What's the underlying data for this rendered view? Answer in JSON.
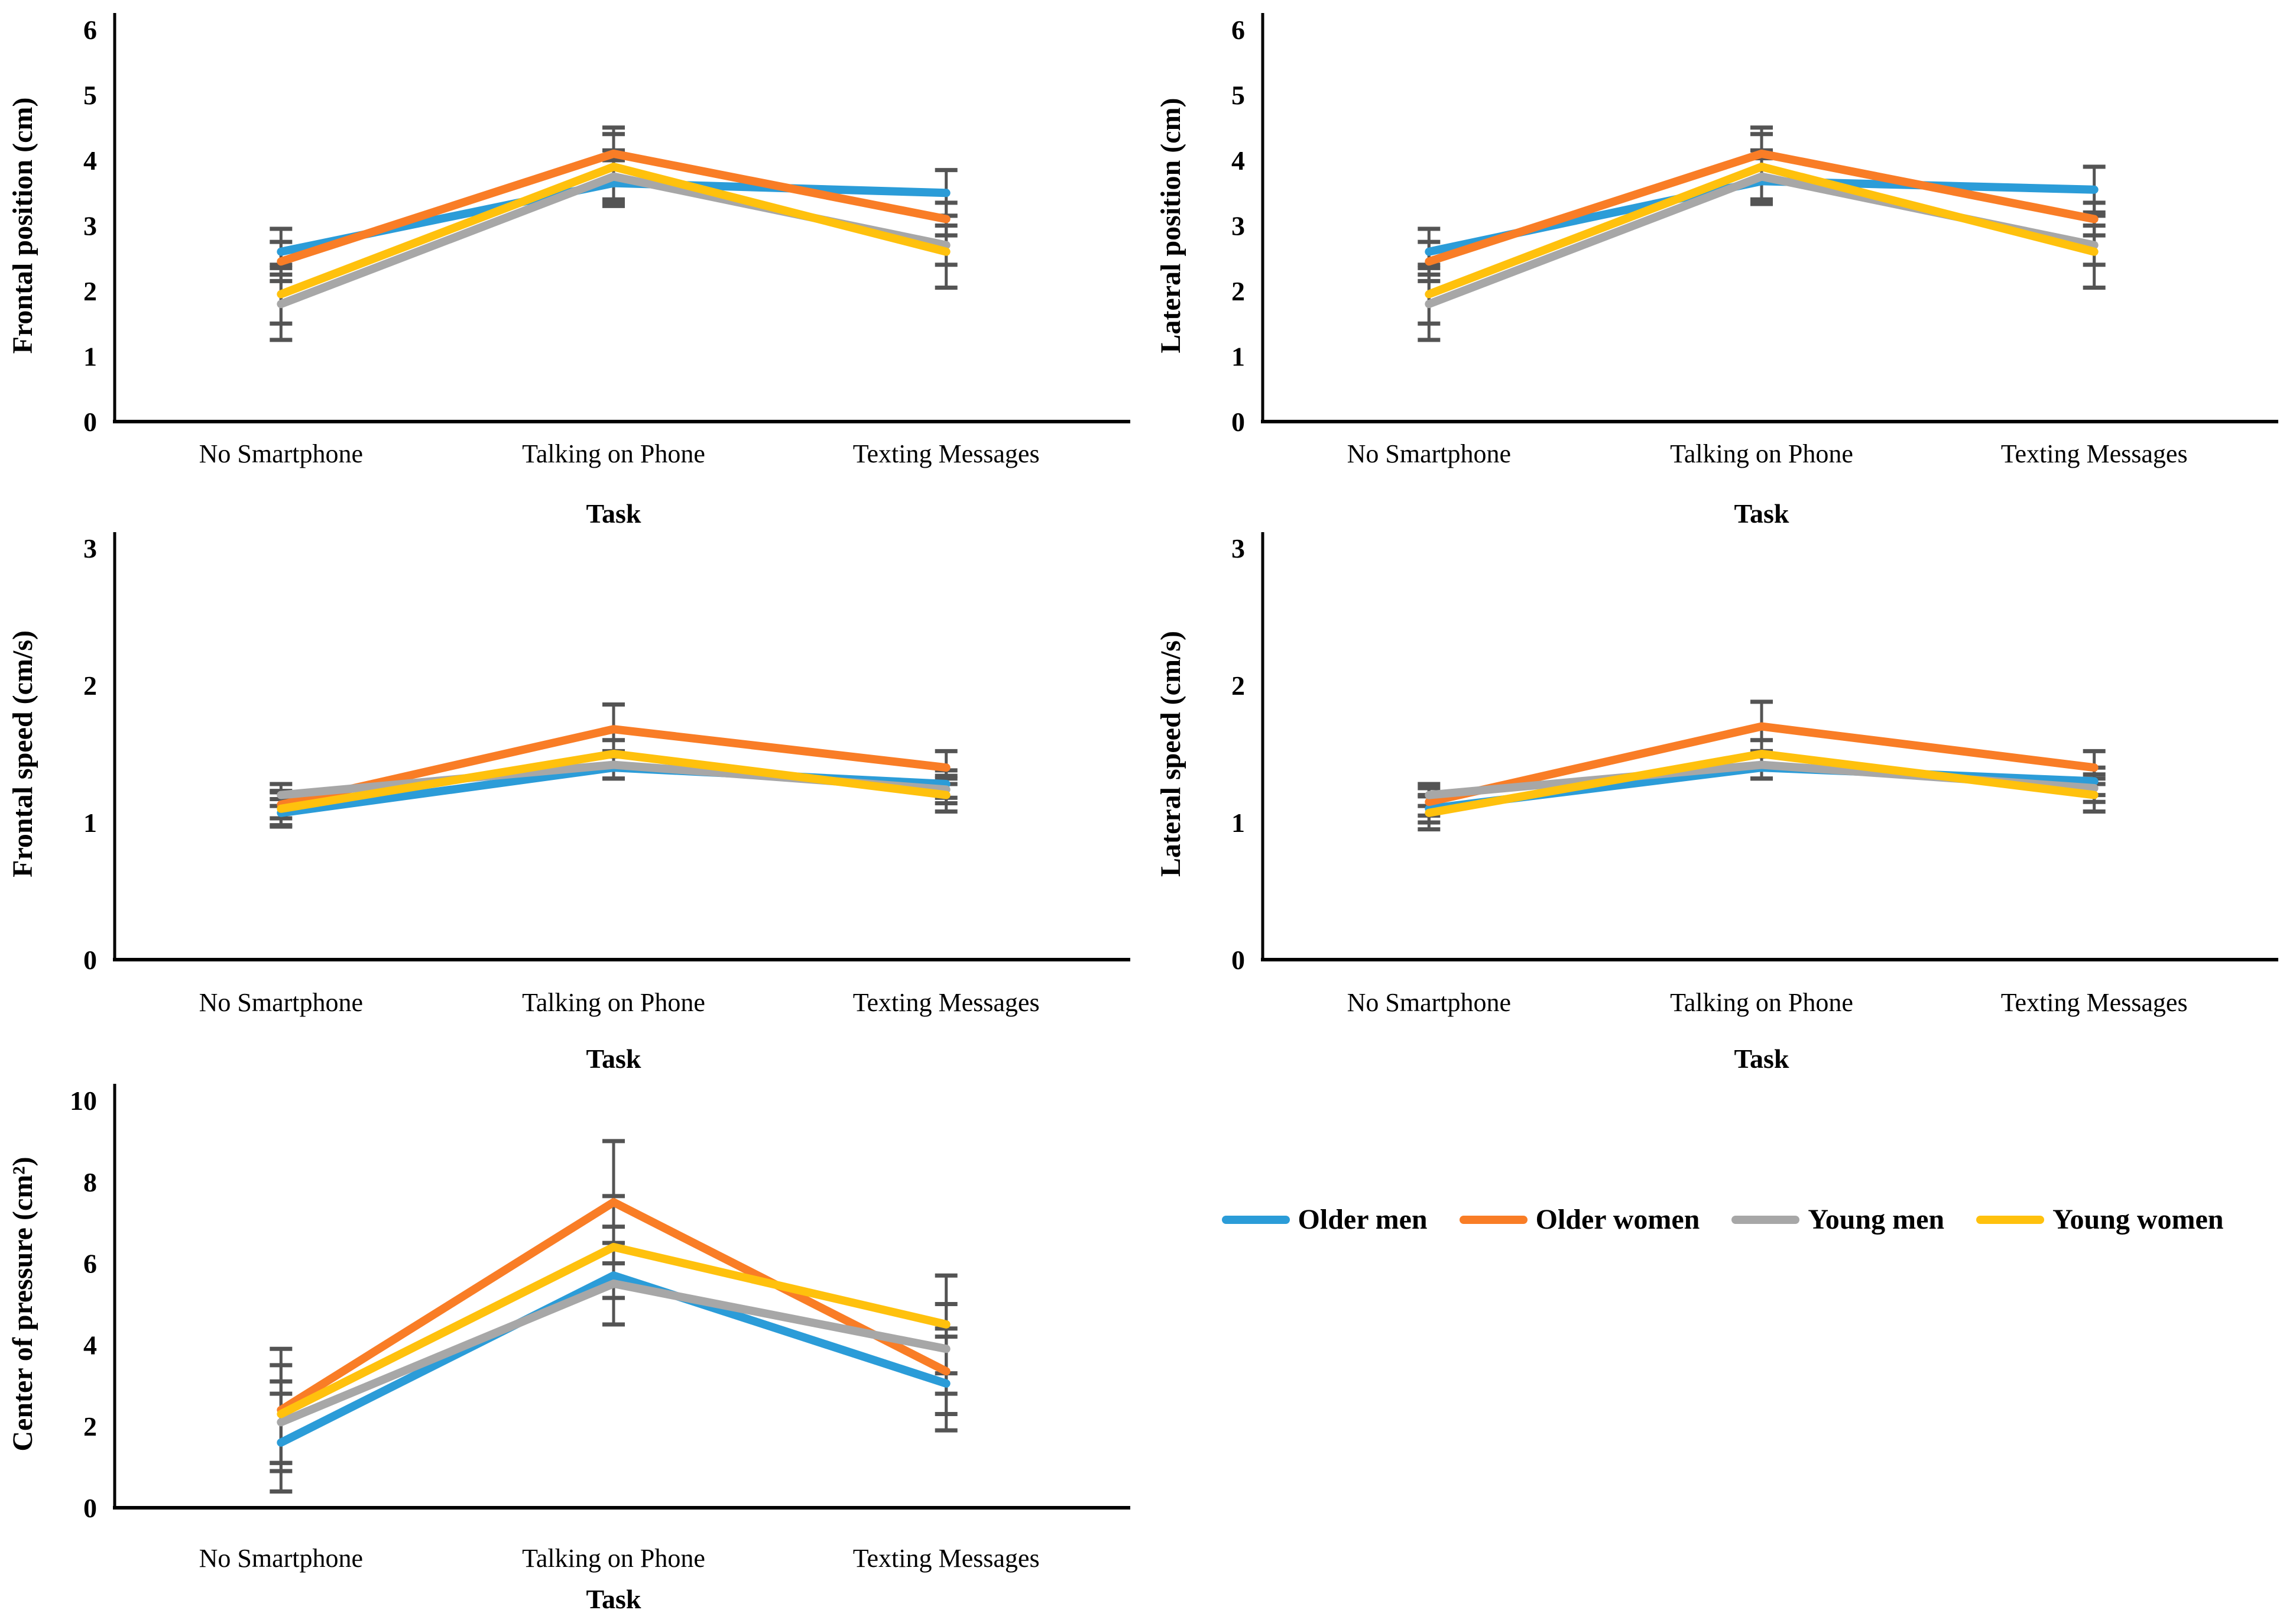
{
  "page": {
    "background": "#ffffff"
  },
  "chart_data": {
    "type": "line",
    "figure": "2x3 grid of mean±error line charts, legend in bottom-right cell",
    "categories": [
      "No Smartphone",
      "Talking on Phone",
      "Texting Messages"
    ],
    "xlabel": "Task",
    "grid": "off",
    "error_bar_color": "#545454",
    "axis_color": "#000000",
    "legend": {
      "position": "bottom-right-cell",
      "items": [
        {
          "label": "Older men",
          "color": "#2B9CD8"
        },
        {
          "label": "Older women",
          "color": "#F97D26"
        },
        {
          "label": "Young men",
          "color": "#A7A7A7"
        },
        {
          "label": "Young women",
          "color": "#FFC10D"
        }
      ]
    },
    "charts": [
      {
        "ylabel": "Frontal position (cm)",
        "ylim": [
          0,
          6
        ],
        "yticks": [
          0,
          1,
          2,
          3,
          4,
          5,
          6
        ],
        "series": [
          {
            "name": "Older men",
            "values": [
              2.6,
              3.65,
              3.5
            ],
            "err": [
              0.35,
              0.35,
              0.35
            ]
          },
          {
            "name": "Older women",
            "values": [
              2.45,
              4.1,
              3.1
            ],
            "err": [
              0.3,
              0.4,
              0.25
            ]
          },
          {
            "name": "Young men",
            "values": [
              1.8,
              3.75,
              2.7
            ],
            "err": [
              0.55,
              0.4,
              0.3
            ]
          },
          {
            "name": "Young women",
            "values": [
              1.95,
              3.9,
              2.6
            ],
            "err": [
              0.45,
              0.5,
              0.55
            ]
          }
        ]
      },
      {
        "ylabel": "Lateral position (cm)",
        "ylim": [
          0,
          6
        ],
        "yticks": [
          0,
          1,
          2,
          3,
          4,
          5,
          6
        ],
        "series": [
          {
            "name": "Older men",
            "values": [
              2.6,
              3.68,
              3.55
            ],
            "err": [
              0.35,
              0.35,
              0.35
            ]
          },
          {
            "name": "Older women",
            "values": [
              2.45,
              4.1,
              3.1
            ],
            "err": [
              0.3,
              0.4,
              0.25
            ]
          },
          {
            "name": "Young men",
            "values": [
              1.8,
              3.75,
              2.7
            ],
            "err": [
              0.55,
              0.4,
              0.3
            ]
          },
          {
            "name": "Young women",
            "values": [
              1.95,
              3.9,
              2.6
            ],
            "err": [
              0.45,
              0.5,
              0.55
            ]
          }
        ]
      },
      {
        "ylabel": "Frontal speed (cm/s)",
        "ylim": [
          0,
          3
        ],
        "yticks": [
          0,
          1,
          2,
          3
        ],
        "series": [
          {
            "name": "Older men",
            "values": [
              1.07,
              1.4,
              1.28
            ],
            "err": [
              0.1,
              0.08,
              0.1
            ]
          },
          {
            "name": "Older women",
            "values": [
              1.13,
              1.68,
              1.4
            ],
            "err": [
              0.1,
              0.18,
              0.12
            ]
          },
          {
            "name": "Young men",
            "values": [
              1.2,
              1.42,
              1.24
            ],
            "err": [
              0.08,
              0.1,
              0.1
            ]
          },
          {
            "name": "Young women",
            "values": [
              1.1,
              1.5,
              1.2
            ],
            "err": [
              0.12,
              0.1,
              0.12
            ]
          }
        ]
      },
      {
        "ylabel": "Lateral speed (cm/s)",
        "ylim": [
          0,
          3
        ],
        "yticks": [
          0,
          1,
          2,
          3
        ],
        "series": [
          {
            "name": "Older men",
            "values": [
              1.1,
              1.4,
              1.3
            ],
            "err": [
              0.1,
              0.08,
              0.1
            ]
          },
          {
            "name": "Older women",
            "values": [
              1.15,
              1.7,
              1.4
            ],
            "err": [
              0.1,
              0.18,
              0.12
            ]
          },
          {
            "name": "Young men",
            "values": [
              1.2,
              1.42,
              1.25
            ],
            "err": [
              0.08,
              0.1,
              0.1
            ]
          },
          {
            "name": "Young women",
            "values": [
              1.07,
              1.5,
              1.2
            ],
            "err": [
              0.12,
              0.1,
              0.12
            ]
          }
        ]
      },
      {
        "ylabel": "Center of pressure (cm²)",
        "ylim": [
          0,
          10
        ],
        "yticks": [
          0,
          2,
          4,
          6,
          8,
          10
        ],
        "series": [
          {
            "name": "Older men",
            "values": [
              1.6,
              5.7,
              3.05
            ],
            "err": [
              1.2,
              1.2,
              1.15
            ]
          },
          {
            "name": "Older women",
            "values": [
              2.4,
              7.5,
              3.35
            ],
            "err": [
              1.5,
              1.5,
              1.05
            ]
          },
          {
            "name": "Young men",
            "values": [
              2.1,
              5.5,
              3.9
            ],
            "err": [
              1.0,
              1.0,
              1.1
            ]
          },
          {
            "name": "Young women",
            "values": [
              2.3,
              6.4,
              4.5
            ],
            "err": [
              1.2,
              1.25,
              1.2
            ]
          }
        ]
      }
    ]
  }
}
